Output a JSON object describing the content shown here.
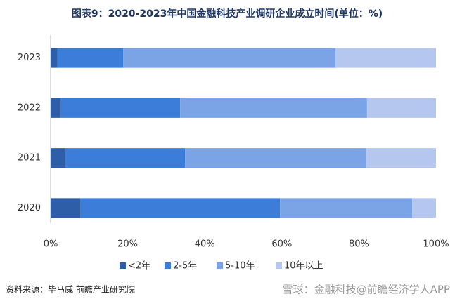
{
  "chart_data": {
    "type": "stacked_barh",
    "title": "图表9：2020-2023年中国金融科技产业调研企业成立时间(单位：%)",
    "categories": [
      "2023",
      "2022",
      "2021",
      "2020"
    ],
    "series": [
      {
        "name": "<2年",
        "color": "#2e5ea8",
        "values": [
          1.8,
          2.7,
          3.8,
          7.8
        ]
      },
      {
        "name": "2-5年",
        "color": "#3b7dd8",
        "values": [
          17.0,
          30.9,
          31.1,
          51.7
        ]
      },
      {
        "name": "5-10年",
        "color": "#7ba4e6",
        "values": [
          55.1,
          48.5,
          47.0,
          34.3
        ]
      },
      {
        "name": "10年以上",
        "color": "#b5c7ef",
        "values": [
          26.1,
          17.9,
          18.1,
          6.2
        ]
      }
    ],
    "xlim": [
      0,
      100
    ],
    "xticks": [
      {
        "value": 0,
        "label": "0%"
      },
      {
        "value": 20,
        "label": "20%"
      },
      {
        "value": 40,
        "label": "40%"
      },
      {
        "value": 60,
        "label": "60%"
      },
      {
        "value": 80,
        "label": "80%"
      },
      {
        "value": 100,
        "label": "100%"
      }
    ],
    "legend": "bottom",
    "source": "资料来源：毕马威 前瞻产业研究院",
    "watermark": "雪球：金融科技@前瞻经济学人APP"
  }
}
